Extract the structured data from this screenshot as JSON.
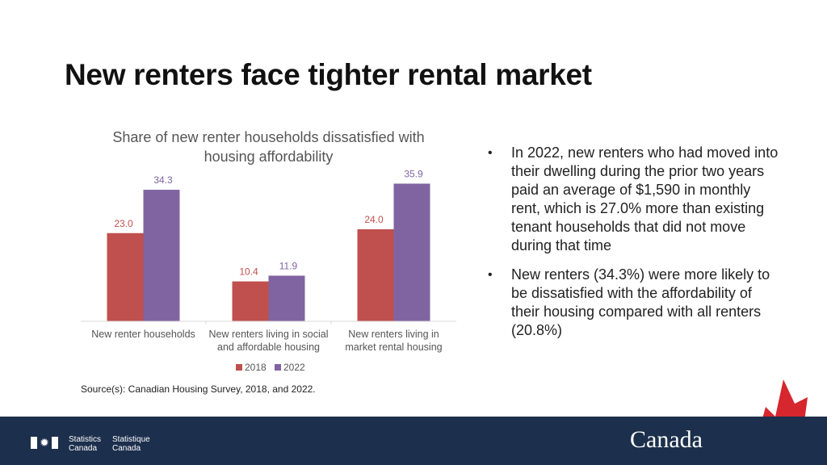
{
  "slide_title": "New renters face tighter rental market",
  "chart_data": {
    "type": "bar",
    "title": "Share of new renter households dissatisfied with housing affordability",
    "categories": [
      [
        "New renter households"
      ],
      [
        "New renters living in social",
        "and affordable housing"
      ],
      [
        "New renters living in",
        "market rental housing"
      ]
    ],
    "series": [
      {
        "name": "2018",
        "values": [
          23.0,
          10.4,
          24.0
        ],
        "color": "#c0504d"
      },
      {
        "name": "2022",
        "values": [
          34.3,
          11.9,
          35.9
        ],
        "color": "#8064a2"
      }
    ],
    "ylim": [
      0,
      40
    ],
    "grid": false,
    "legend": "bottom",
    "xlabel": "",
    "ylabel": ""
  },
  "bullets": [
    "In 2022, new renters who had moved into their dwelling during the prior two years paid an average of $1,590 in monthly rent, which is 27.0% more than existing tenant households that did not move during that time",
    "New renters (34.3%) were more likely to be dissatisfied with the affordability of their housing compared with all renters (20.8%)"
  ],
  "source": "Source(s): Canadian Housing Survey, 2018, and 2022.",
  "footer": {
    "statcan_en": [
      "Statistics",
      "Canada"
    ],
    "statcan_fr": [
      "Statistique",
      "Canada"
    ],
    "wordmark": "Canada",
    "footer_color": "#1c2f4c"
  }
}
